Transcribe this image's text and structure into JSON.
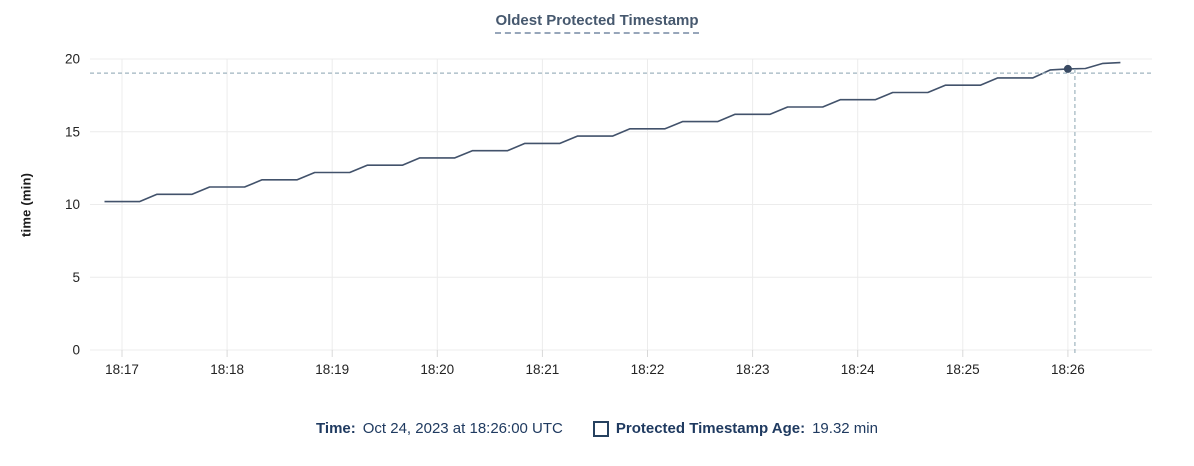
{
  "title": "Oldest Protected Timestamp",
  "colors": {
    "series": "#42526b",
    "point": "#394a63",
    "crosshair": "#9fb4bf",
    "grid": "#ececec",
    "axis": "#d8d8d8",
    "tick_text": "#232323",
    "title_text": "#46586e",
    "legend_text": "#1f3a60"
  },
  "chart_data": {
    "type": "line",
    "title": "Oldest Protected Timestamp",
    "xlabel": "",
    "ylabel": "time (min)",
    "ylim": [
      0,
      20
    ],
    "y_ticks": [
      0,
      5,
      10,
      15,
      20
    ],
    "x_ticks": [
      "18:17",
      "18:18",
      "18:19",
      "18:20",
      "18:21",
      "18:22",
      "18:23",
      "18:24",
      "18:25",
      "18:26"
    ],
    "grid": true,
    "legend_position": "bottom",
    "series": [
      {
        "name": "Protected Timestamp Age",
        "start_time": "18:16:50",
        "interval_seconds": 10,
        "values": [
          10.2,
          10.2,
          10.2,
          10.7,
          10.7,
          10.7,
          11.2,
          11.2,
          11.2,
          11.7,
          11.7,
          11.7,
          12.2,
          12.2,
          12.2,
          12.7,
          12.7,
          12.7,
          13.2,
          13.2,
          13.2,
          13.7,
          13.7,
          13.7,
          14.2,
          14.2,
          14.2,
          14.7,
          14.7,
          14.7,
          15.2,
          15.2,
          15.2,
          15.7,
          15.7,
          15.7,
          16.2,
          16.2,
          16.2,
          16.7,
          16.7,
          16.7,
          17.2,
          17.2,
          17.2,
          17.7,
          17.7,
          17.7,
          18.2,
          18.2,
          18.2,
          18.7,
          18.7,
          18.7,
          19.25,
          19.32,
          19.35,
          19.7,
          19.75
        ]
      }
    ],
    "hover": {
      "point_time": "18:26:00",
      "point_value": 19.32,
      "cursor_time": "18:26:04",
      "cursor_value": 19.03
    }
  },
  "legend": {
    "time_label": "Time:",
    "time_value": "Oct 24, 2023 at 18:26:00 UTC",
    "series_label": "Protected Timestamp Age:",
    "series_value": "19.32 min"
  }
}
